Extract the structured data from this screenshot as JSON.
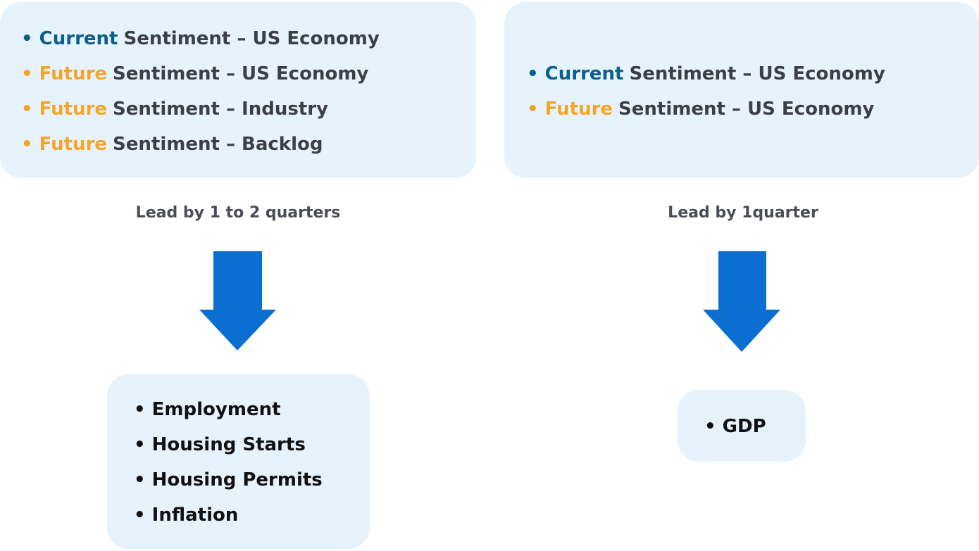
{
  "left": {
    "top_items": [
      {
        "highlight": "• Current",
        "kind": "current",
        "text": "Sentiment – US Economy"
      },
      {
        "highlight": "• Future",
        "kind": "future",
        "text": "Sentiment – US Economy"
      },
      {
        "highlight": "• Future",
        "kind": "future",
        "text": "Sentiment – Industry"
      },
      {
        "highlight": "• Future",
        "kind": "future",
        "text": "Sentiment – Backlog"
      }
    ],
    "lead": "Lead by 1 to 2 quarters",
    "bottom_items": [
      "• Employment",
      "• Housing Starts",
      "• Housing Permits",
      "• Inflation"
    ]
  },
  "right": {
    "top_items": [
      {
        "highlight": "• Current",
        "kind": "current",
        "text": "Sentiment – US Economy"
      },
      {
        "highlight": "• Future",
        "kind": "future",
        "text": "Sentiment – US Economy"
      }
    ],
    "lead": "Lead by 1quarter",
    "bottom_items": [
      "• GDP"
    ]
  }
}
